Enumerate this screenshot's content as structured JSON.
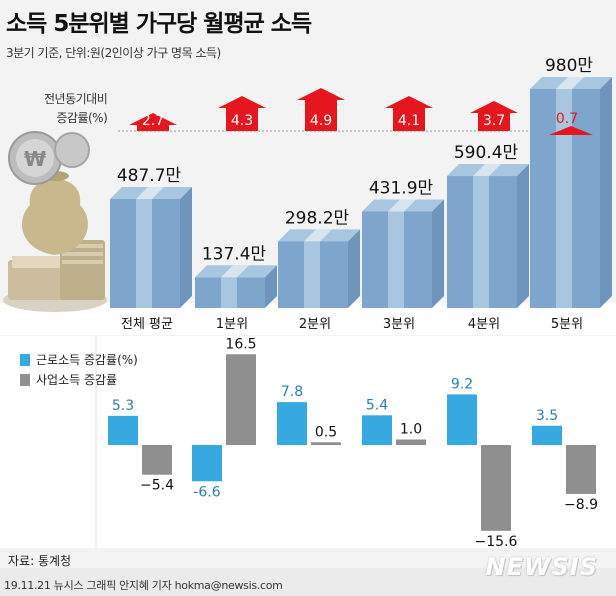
{
  "title": "소득 5분위별 가구당 월평균 소득",
  "subtitle": "3분기 기준, 단위:원(2인이상 가구 명목 소득)",
  "source": "자료: 통계청",
  "credit": "19.11.21 뉴시스 그래픽 안지혜 기자 hokma@newsis.com",
  "watermark": "NEWSIS",
  "colors": {
    "bar_top": "#7ea6cc",
    "bar_light": "#a9c6e1",
    "arrow": "#e5161d",
    "earned": "#36a9e1",
    "business": "#8f8f8f"
  },
  "chart_data": [
    {
      "type": "bar",
      "categories": [
        "전체 평균",
        "1분위",
        "2분위",
        "3분위",
        "4분위",
        "5분위"
      ],
      "values": [
        487.7,
        137.4,
        298.2,
        431.9,
        590.4,
        980
      ],
      "value_labels": [
        "487.7만",
        "137.4만",
        "298.2만",
        "431.9만",
        "590.4만",
        "980만"
      ],
      "annotation_label": [
        "전년동기대비",
        "증감률(%)"
      ],
      "yoy_change": [
        2.7,
        4.3,
        4.9,
        4.1,
        3.7,
        0.7
      ],
      "yoy_labels": [
        "2.7",
        "4.3",
        "4.9",
        "4.1",
        "3.7",
        "0.7"
      ]
    },
    {
      "type": "bar",
      "categories": [
        "전체 평균",
        "1분위",
        "2분위",
        "3분위",
        "4분위",
        "5분위"
      ],
      "series": [
        {
          "name": "근로소득 증감률(%)",
          "values": [
            5.3,
            -6.6,
            7.8,
            5.4,
            9.2,
            3.5
          ]
        },
        {
          "name": "사업소득 증감률",
          "values": [
            -5.4,
            16.5,
            0.5,
            1.0,
            -15.6,
            -8.9
          ]
        }
      ],
      "labels": [
        [
          "5.3",
          "-6.6",
          "7.8",
          "5.4",
          "9.2",
          "3.5"
        ],
        [
          "−5.4",
          "16.5",
          "0.5",
          "1.0",
          "−15.6",
          "−8.9"
        ]
      ],
      "legend": "top-left"
    }
  ]
}
